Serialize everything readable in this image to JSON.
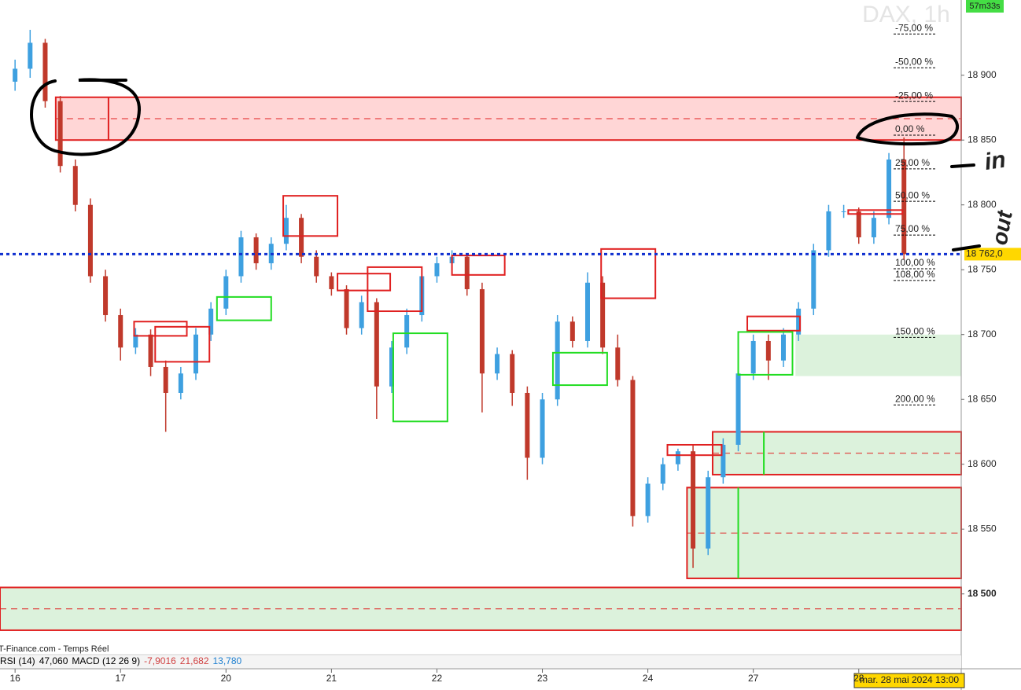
{
  "chart_data": {
    "type": "candlestick",
    "title": "DAX, 1h",
    "timer": "57m33s",
    "source": "T-Finance.com - Temps Réel",
    "indicators": [
      {
        "text": "RSI (14)",
        "color": "#000000"
      },
      {
        "text": "47,060",
        "color": "#000000"
      },
      {
        "text": "MACD (12 26 9)",
        "color": "#000000"
      },
      {
        "text": "-7,9016",
        "color": "#d04040"
      },
      {
        "text": "21,682",
        "color": "#d04040"
      },
      {
        "text": "13,780",
        "color": "#2080d0"
      }
    ],
    "cursor_label": "mar. 28 mai 2024 13:00",
    "up_color": "#3ea0e0",
    "down_color": "#c0392b",
    "open": [
      18895,
      18905,
      18925,
      18880,
      18830,
      18800,
      18745,
      18715,
      18690,
      18700,
      18675,
      18655,
      18670,
      18700,
      18720,
      18745,
      18775,
      18755,
      18770,
      18790,
      18760,
      18745,
      18735,
      18705,
      18725,
      18660,
      18690,
      18715,
      18745,
      18755,
      18760,
      18735,
      18670,
      18685,
      18655,
      18605,
      18650,
      18710,
      18695,
      18740,
      18690,
      18665,
      18560,
      18585,
      18600,
      18610,
      18535,
      18590,
      18615,
      18670,
      18695,
      18680,
      18700,
      18720,
      18765,
      18795,
      18795,
      18775,
      18790,
      18835
    ],
    "high": [
      18912,
      18935,
      18928,
      18884,
      18835,
      18805,
      18750,
      18720,
      18705,
      18704,
      18680,
      18675,
      18705,
      18725,
      18750,
      18780,
      18778,
      18775,
      18800,
      18793,
      18765,
      18748,
      18738,
      18730,
      18728,
      18695,
      18720,
      18750,
      18760,
      18765,
      18762,
      18740,
      18690,
      18688,
      18660,
      18655,
      18715,
      18714,
      18748,
      18745,
      18700,
      18668,
      18590,
      18605,
      18612,
      18615,
      18595,
      18620,
      18675,
      18700,
      18700,
      18705,
      18725,
      18770,
      18800,
      18800,
      18798,
      18795,
      18840,
      18852
    ],
    "low": [
      18888,
      18898,
      18875,
      18825,
      18795,
      18740,
      18710,
      18680,
      18685,
      18668,
      18625,
      18650,
      18665,
      18695,
      18715,
      18740,
      18750,
      18750,
      18765,
      18755,
      18740,
      18730,
      18700,
      18700,
      18635,
      18655,
      18685,
      18710,
      18740,
      18750,
      18730,
      18640,
      18665,
      18645,
      18588,
      18600,
      18645,
      18690,
      18690,
      18685,
      18660,
      18552,
      18555,
      18580,
      18595,
      18520,
      18530,
      18585,
      18610,
      18665,
      18665,
      18675,
      18695,
      18715,
      18760,
      18790,
      18770,
      18770,
      18785,
      18758
    ],
    "close": [
      18905,
      18925,
      18880,
      18830,
      18800,
      18745,
      18715,
      18690,
      18700,
      18675,
      18655,
      18670,
      18700,
      18720,
      18745,
      18775,
      18755,
      18770,
      18790,
      18760,
      18745,
      18735,
      18705,
      18725,
      18660,
      18690,
      18715,
      18745,
      18755,
      18760,
      18735,
      18670,
      18685,
      18655,
      18605,
      18650,
      18710,
      18695,
      18740,
      18690,
      18665,
      18560,
      18585,
      18600,
      18610,
      18535,
      18590,
      18615,
      18670,
      18695,
      18680,
      18700,
      18720,
      18765,
      18795,
      18795,
      18775,
      18790,
      18835,
      18762
    ],
    "xlim": [
      -1,
      62.8
    ],
    "xticks": [
      {
        "value": 0,
        "label": "16"
      },
      {
        "value": 7,
        "label": "17"
      },
      {
        "value": 14,
        "label": "20"
      },
      {
        "value": 21,
        "label": "21"
      },
      {
        "value": 28,
        "label": "22"
      },
      {
        "value": 35,
        "label": "23"
      },
      {
        "value": 42,
        "label": "24"
      },
      {
        "value": 49,
        "label": "27"
      },
      {
        "value": 56,
        "label": "28"
      }
    ],
    "ylim": [
      18455,
      18958
    ],
    "yticks": [
      {
        "value": 18500,
        "label": "18 500"
      },
      {
        "value": 18550,
        "label": "18 550"
      },
      {
        "value": 18600,
        "label": "18 600"
      },
      {
        "value": 18650,
        "label": "18 650"
      },
      {
        "value": 18700,
        "label": "18 700"
      },
      {
        "value": 18750,
        "label": "18 750"
      },
      {
        "value": 18800,
        "label": "18 800"
      },
      {
        "value": 18850,
        "label": "18 850"
      },
      {
        "value": 18900,
        "label": "18 900"
      }
    ],
    "last_price": {
      "value": 18762,
      "label": "18 762,0"
    },
    "fib_levels": [
      {
        "value": 18936,
        "label": "-75,00 %"
      },
      {
        "value": 18910,
        "label": "-50,00 %"
      },
      {
        "value": 18884,
        "label": "-25,00 %"
      },
      {
        "value": 18858,
        "label": "0,00 %"
      },
      {
        "value": 18832,
        "label": "25,00 %"
      },
      {
        "value": 18807,
        "label": "50,00 %"
      },
      {
        "value": 18781,
        "label": "75,00 %"
      },
      {
        "value": 18755,
        "label": "100,00 %"
      },
      {
        "value": 18746,
        "label": "108,00 %"
      },
      {
        "value": 18702,
        "label": "150,00 %"
      },
      {
        "value": 18650,
        "label": "200,00 %"
      }
    ],
    "zones": [
      {
        "x": [
          2.7,
          62.8
        ],
        "y": [
          18850,
          18883
        ],
        "fill": "#ffd6d6",
        "stroke": "#e02020",
        "divider": 6.2
      },
      {
        "x": [
          51.8,
          62.8
        ],
        "y": [
          18668,
          18700
        ],
        "fill": "#dcf2dc",
        "stroke": "none"
      },
      {
        "x": [
          46.3,
          62.8
        ],
        "y": [
          18592,
          18625
        ],
        "fill": "#dcf2dc",
        "stroke": "#e02020",
        "divider": 49.7
      },
      {
        "x": [
          44.6,
          62.8
        ],
        "y": [
          18512,
          18582
        ],
        "fill": "#dcf2dc",
        "stroke": "#e02020",
        "divider": 48
      },
      {
        "x": [
          -1,
          62.8
        ],
        "y": [
          18472,
          18505
        ],
        "fill": "#dcf2dc",
        "stroke": "#e02020"
      }
    ],
    "boxes": [
      {
        "x": [
          7.9,
          11.4
        ],
        "y": [
          18699,
          18710
        ],
        "color": "#e02020"
      },
      {
        "x": [
          9.3,
          12.9
        ],
        "y": [
          18679,
          18706
        ],
        "color": "#e02020"
      },
      {
        "x": [
          17.8,
          21.4
        ],
        "y": [
          18776,
          18807
        ],
        "color": "#e02020"
      },
      {
        "x": [
          21.4,
          24.9
        ],
        "y": [
          18734,
          18747
        ],
        "color": "#e02020"
      },
      {
        "x": [
          23.4,
          27
        ],
        "y": [
          18718,
          18752
        ],
        "color": "#e02020"
      },
      {
        "x": [
          29,
          32.5
        ],
        "y": [
          18746,
          18761
        ],
        "color": "#e02020"
      },
      {
        "x": [
          38.9,
          42.5
        ],
        "y": [
          18728,
          18766
        ],
        "color": "#e02020"
      },
      {
        "x": [
          43.3,
          46.9
        ],
        "y": [
          18607,
          18615
        ],
        "color": "#e02020"
      },
      {
        "x": [
          48.6,
          52.1
        ],
        "y": [
          18703,
          18714
        ],
        "color": "#e02020"
      },
      {
        "x": [
          55.3,
          58.9
        ],
        "y": [
          18793,
          18796
        ],
        "color": "#e02020"
      },
      {
        "x": [
          13.4,
          17
        ],
        "y": [
          18711,
          18729
        ],
        "color": "#22dd22"
      },
      {
        "x": [
          25.1,
          28.7
        ],
        "y": [
          18633,
          18701
        ],
        "color": "#22dd22"
      },
      {
        "x": [
          35.7,
          39.3
        ],
        "y": [
          18661,
          18686
        ],
        "color": "#22dd22"
      },
      {
        "x": [
          48,
          51.6
        ],
        "y": [
          18669,
          18702
        ],
        "color": "#22dd22"
      }
    ],
    "annotations": [
      "in",
      "out"
    ]
  }
}
